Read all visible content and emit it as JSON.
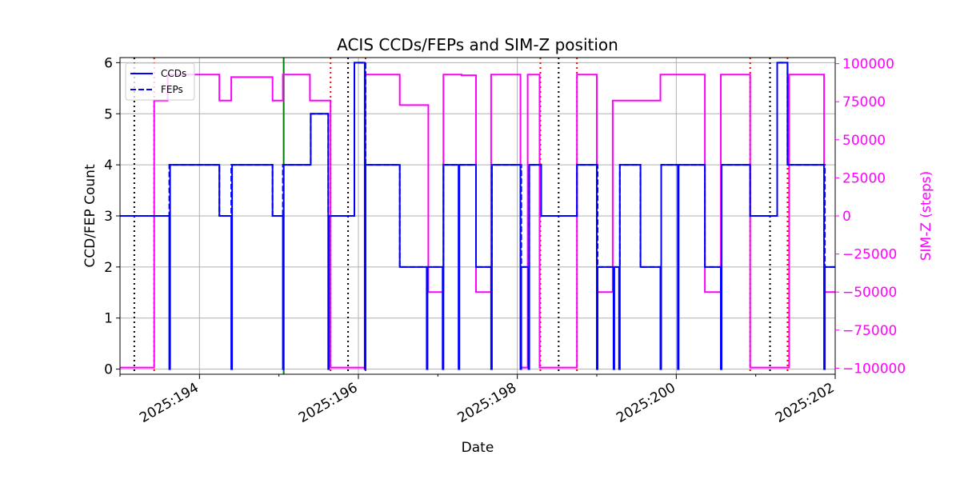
{
  "chart_data": {
    "type": "line",
    "title": "ACIS CCDs/FEPs and SIM-Z position",
    "xlabel": "Date",
    "ylabel_left": "CCD/FEP Count",
    "ylabel_right": "SIM-Z (steps)",
    "grid": true,
    "legend_position": "top-left",
    "x_unit": "day-of-year 2025",
    "xlim": [
      193.0,
      202.0
    ],
    "ylim_left": [
      -0.1,
      6.1
    ],
    "ylim_right": [
      -104000,
      104000
    ],
    "x_ticks": [
      {
        "value": 194,
        "label": "2025:194"
      },
      {
        "value": 196,
        "label": "2025:196"
      },
      {
        "value": 198,
        "label": "2025:198"
      },
      {
        "value": 200,
        "label": "2025:200"
      },
      {
        "value": 202,
        "label": "2025:202"
      }
    ],
    "y_ticks_left": [
      "0",
      "1",
      "2",
      "3",
      "4",
      "5",
      "6"
    ],
    "y_ticks_right": [
      {
        "value": 100000,
        "label": "100000"
      },
      {
        "value": 75000,
        "label": "75000"
      },
      {
        "value": 50000,
        "label": "50000"
      },
      {
        "value": 25000,
        "label": "25000"
      },
      {
        "value": 0,
        "label": "0"
      },
      {
        "value": -25000,
        "label": "−25000"
      },
      {
        "value": -50000,
        "label": "−50000"
      },
      {
        "value": -75000,
        "label": "−75000"
      },
      {
        "value": -100000,
        "label": "−100000"
      }
    ],
    "colors": {
      "ccds": "#0000ff",
      "feps": "#0000ff",
      "simz": "#ff00ff",
      "grid": "#b0b0b0",
      "black_vlines": "#000000",
      "red_vlines": "#ff0000",
      "green_vline": "#008000",
      "right_axis": "#ff00ff"
    },
    "series": [
      {
        "name": "CCDs",
        "axis": "left",
        "style": "solid",
        "steps": [
          [
            193.0,
            3
          ],
          [
            193.62,
            0
          ],
          [
            193.63,
            4
          ],
          [
            194.25,
            3
          ],
          [
            194.4,
            0
          ],
          [
            194.41,
            4
          ],
          [
            194.92,
            3
          ],
          [
            195.05,
            0
          ],
          [
            195.06,
            4
          ],
          [
            195.4,
            5
          ],
          [
            195.62,
            0
          ],
          [
            195.63,
            3
          ],
          [
            195.95,
            6
          ],
          [
            196.08,
            0
          ],
          [
            196.09,
            4
          ],
          [
            196.52,
            2
          ],
          [
            196.86,
            0
          ],
          [
            196.87,
            2
          ],
          [
            197.06,
            0
          ],
          [
            197.07,
            4
          ],
          [
            197.26,
            0
          ],
          [
            197.27,
            4
          ],
          [
            197.48,
            2
          ],
          [
            197.67,
            0
          ],
          [
            197.68,
            4
          ],
          [
            198.04,
            0
          ],
          [
            198.05,
            2
          ],
          [
            198.14,
            0
          ],
          [
            198.15,
            4
          ],
          [
            198.3,
            3
          ],
          [
            198.75,
            4
          ],
          [
            199.0,
            0
          ],
          [
            199.01,
            2
          ],
          [
            199.21,
            0
          ],
          [
            199.22,
            2
          ],
          [
            199.28,
            0
          ],
          [
            199.29,
            4
          ],
          [
            199.55,
            2
          ],
          [
            199.8,
            0
          ],
          [
            199.81,
            4
          ],
          [
            200.02,
            0
          ],
          [
            200.03,
            4
          ],
          [
            200.36,
            2
          ],
          [
            200.56,
            0
          ],
          [
            200.57,
            4
          ],
          [
            200.93,
            3
          ],
          [
            201.27,
            6
          ],
          [
            201.4,
            4
          ],
          [
            201.86,
            0
          ],
          [
            201.87,
            2
          ],
          [
            202.0,
            2
          ]
        ]
      },
      {
        "name": "FEPs",
        "axis": "left",
        "style": "dashed",
        "steps": [
          [
            193.0,
            3
          ],
          [
            193.62,
            4
          ],
          [
            194.25,
            3
          ],
          [
            194.4,
            4
          ],
          [
            194.92,
            3
          ],
          [
            195.05,
            4
          ],
          [
            195.4,
            5
          ],
          [
            195.62,
            3
          ],
          [
            195.95,
            6
          ],
          [
            196.09,
            4
          ],
          [
            196.52,
            2
          ],
          [
            197.07,
            4
          ],
          [
            197.48,
            2
          ],
          [
            197.68,
            4
          ],
          [
            198.05,
            2
          ],
          [
            198.15,
            4
          ],
          [
            198.3,
            3
          ],
          [
            198.75,
            4
          ],
          [
            199.01,
            2
          ],
          [
            199.29,
            4
          ],
          [
            199.55,
            2
          ],
          [
            199.81,
            4
          ],
          [
            200.36,
            2
          ],
          [
            200.57,
            4
          ],
          [
            200.93,
            3
          ],
          [
            201.27,
            6
          ],
          [
            201.4,
            4
          ],
          [
            201.87,
            2
          ],
          [
            202.0,
            2
          ]
        ]
      },
      {
        "name": "SIM-Z",
        "axis": "right",
        "style": "solid",
        "steps": [
          [
            193.0,
            -99600
          ],
          [
            193.43,
            75800
          ],
          [
            193.6,
            92800
          ],
          [
            194.25,
            75800
          ],
          [
            194.4,
            91200
          ],
          [
            194.92,
            75800
          ],
          [
            195.05,
            92800
          ],
          [
            195.39,
            75800
          ],
          [
            195.65,
            -99600
          ],
          [
            196.09,
            92800
          ],
          [
            196.52,
            72800
          ],
          [
            196.88,
            -50000
          ],
          [
            197.07,
            92800
          ],
          [
            197.3,
            92400
          ],
          [
            197.48,
            -50000
          ],
          [
            197.67,
            92800
          ],
          [
            198.04,
            -99600
          ],
          [
            198.13,
            92800
          ],
          [
            198.28,
            -99600
          ],
          [
            198.75,
            92800
          ],
          [
            199.0,
            -50000
          ],
          [
            199.2,
            75800
          ],
          [
            199.8,
            92800
          ],
          [
            200.36,
            -50000
          ],
          [
            200.56,
            92800
          ],
          [
            200.93,
            -99600
          ],
          [
            201.42,
            92800
          ],
          [
            201.86,
            -50000
          ],
          [
            202.0,
            -50000
          ]
        ]
      }
    ],
    "vertical_markers": [
      {
        "x": 193.18,
        "color": "black",
        "style": "dotted"
      },
      {
        "x": 195.87,
        "color": "black",
        "style": "dotted"
      },
      {
        "x": 198.52,
        "color": "black",
        "style": "dotted"
      },
      {
        "x": 201.18,
        "color": "black",
        "style": "dotted"
      },
      {
        "x": 193.43,
        "color": "red",
        "style": "dotted"
      },
      {
        "x": 195.65,
        "color": "red",
        "style": "dotted"
      },
      {
        "x": 196.09,
        "color": "red",
        "style": "dotted"
      },
      {
        "x": 198.29,
        "color": "red",
        "style": "dotted"
      },
      {
        "x": 198.75,
        "color": "red",
        "style": "dotted"
      },
      {
        "x": 200.93,
        "color": "red",
        "style": "dotted"
      },
      {
        "x": 201.4,
        "color": "red",
        "style": "dotted"
      },
      {
        "x": 195.06,
        "color": "green",
        "style": "solid"
      }
    ]
  }
}
